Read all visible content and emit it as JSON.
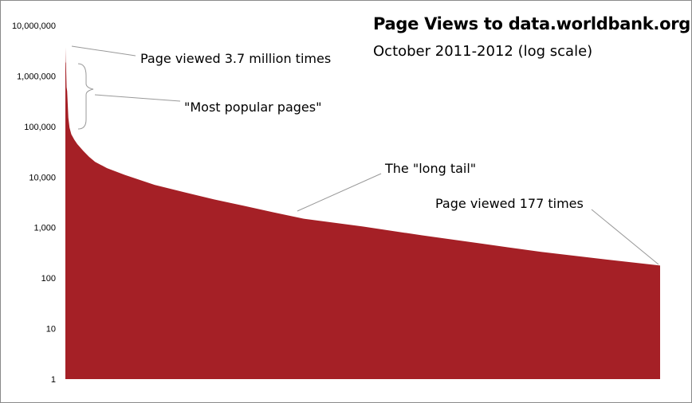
{
  "chart_data": {
    "type": "area",
    "title": "Page Views to data.worldbank.org",
    "subtitle": "October 2011-2012 (log scale)",
    "xlabel": "",
    "ylabel": "",
    "yscale": "log",
    "ylim": [
      1,
      10000000
    ],
    "yticks": [
      {
        "value": 10000000,
        "label": "10,000,000"
      },
      {
        "value": 1000000,
        "label": "1,000,000"
      },
      {
        "value": 100000,
        "label": "100,000"
      },
      {
        "value": 10000,
        "label": "10,000"
      },
      {
        "value": 1000,
        "label": "1,000"
      },
      {
        "value": 100,
        "label": "100"
      },
      {
        "value": 10,
        "label": "10"
      },
      {
        "value": 1,
        "label": "1"
      }
    ],
    "grid": false,
    "legend": "none",
    "series": [
      {
        "color": "#a52026",
        "rank_fraction": [
          0.0,
          0.0005,
          0.001,
          0.002,
          0.003,
          0.005,
          0.007,
          0.01,
          0.015,
          0.02,
          0.03,
          0.04,
          0.05,
          0.07,
          0.1,
          0.15,
          0.2,
          0.25,
          0.3,
          0.35,
          0.4,
          0.5,
          0.6,
          0.7,
          0.8,
          0.9,
          1.0
        ],
        "views": [
          3700000,
          1900000,
          1800000,
          600000,
          500000,
          150000,
          95000,
          70000,
          55000,
          45000,
          33000,
          25000,
          20000,
          15000,
          11000,
          7000,
          5000,
          3600,
          2700,
          2000,
          1500,
          1050,
          700,
          480,
          330,
          240,
          177
        ]
      }
    ],
    "annotations": [
      {
        "text": "Page viewed 3.7 million times"
      },
      {
        "text": "\"Most popular pages\""
      },
      {
        "text": "The \"long tail\""
      },
      {
        "text": "Page viewed 177 times"
      }
    ]
  }
}
